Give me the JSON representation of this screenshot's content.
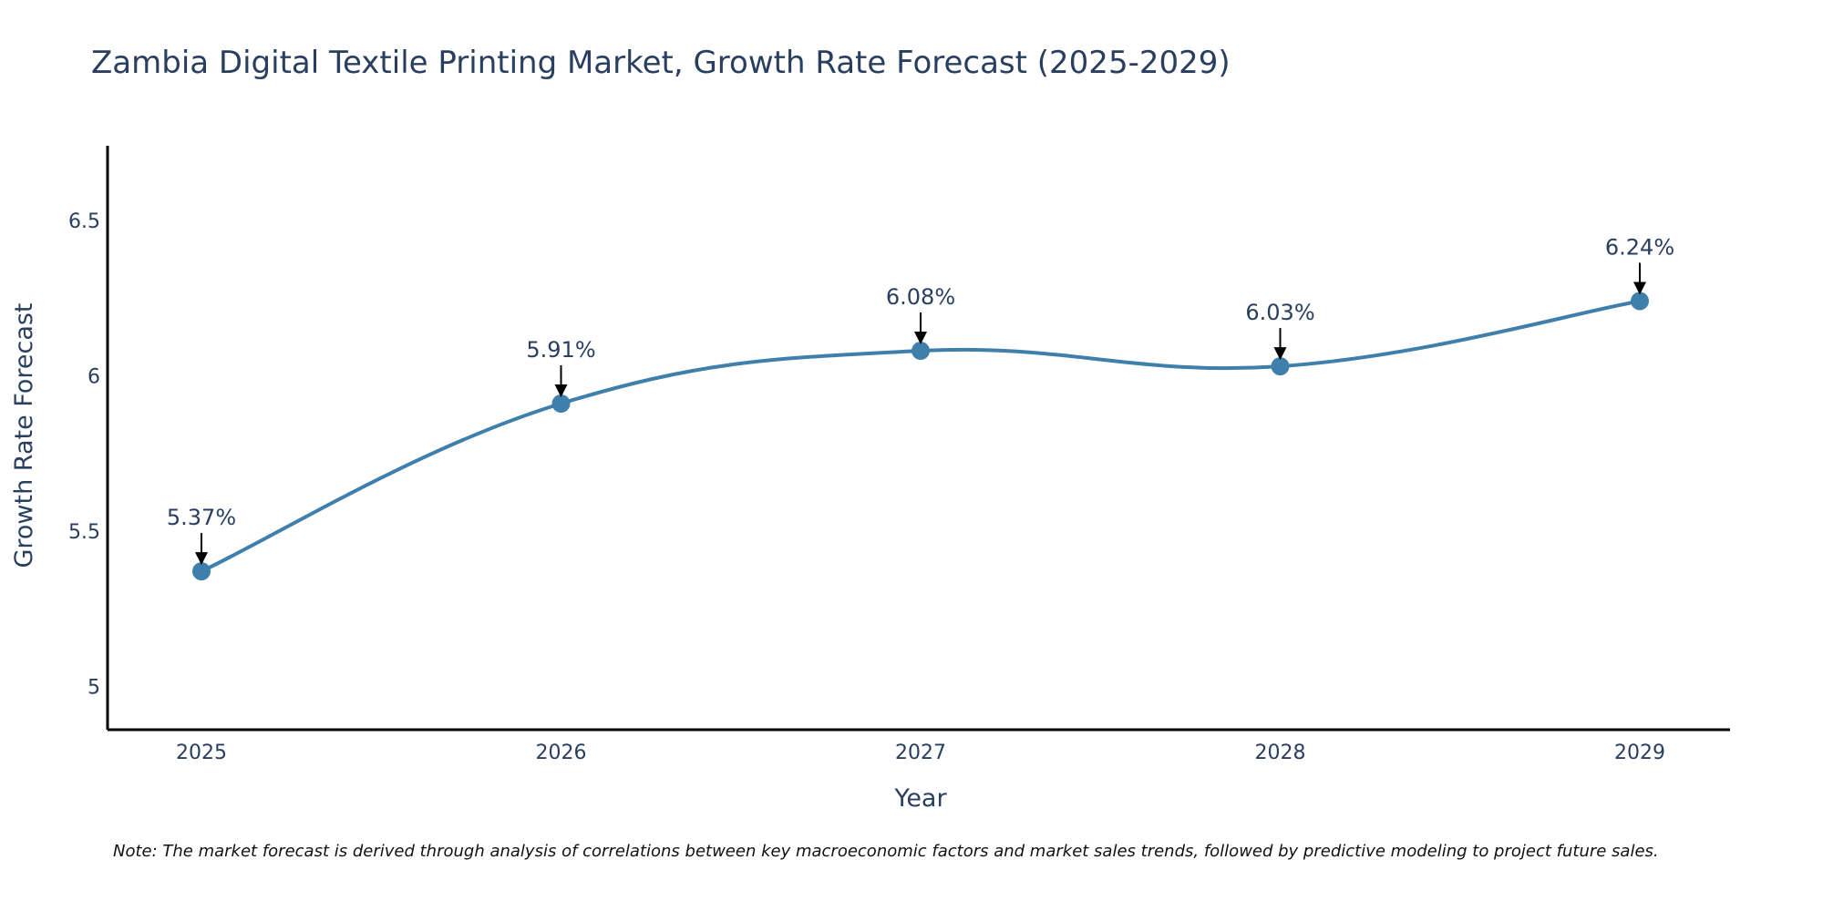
{
  "chart_data": {
    "type": "line",
    "title": "Zambia Digital Textile Printing Market, Growth Rate Forecast (2025-2029)",
    "xlabel": "Year",
    "ylabel": "Growth Rate Forecast",
    "x": [
      "2025",
      "2026",
      "2027",
      "2028",
      "2029"
    ],
    "series": [
      {
        "name": "Growth Rate Forecast",
        "values": [
          5.37,
          5.91,
          6.08,
          6.03,
          6.24
        ],
        "labels": [
          "5.37%",
          "5.91%",
          "6.08%",
          "6.03%",
          "6.24%"
        ]
      }
    ],
    "ylim": [
      4.86,
      6.74
    ],
    "yticks": [
      {
        "value": 5,
        "label": "5"
      },
      {
        "value": 5.5,
        "label": "5.5"
      },
      {
        "value": 6,
        "label": "6"
      },
      {
        "value": 6.5,
        "label": "6.5"
      }
    ],
    "grid": false,
    "line_color": "#3f7fab",
    "note": "Note: The market forecast is derived through analysis of correlations between key macroeconomic factors and market sales trends, followed by predictive modeling to project future sales."
  }
}
